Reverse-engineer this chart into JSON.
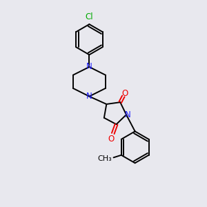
{
  "bg_color": "#e8e8ee",
  "bond_color": "#000000",
  "N_color": "#2020ff",
  "O_color": "#ee0000",
  "Cl_color": "#00aa00",
  "line_width": 1.4,
  "font_size": 8.5,
  "figsize": [
    3.0,
    3.0
  ],
  "dpi": 100,
  "xlim": [
    0,
    10
  ],
  "ylim": [
    0,
    10
  ]
}
